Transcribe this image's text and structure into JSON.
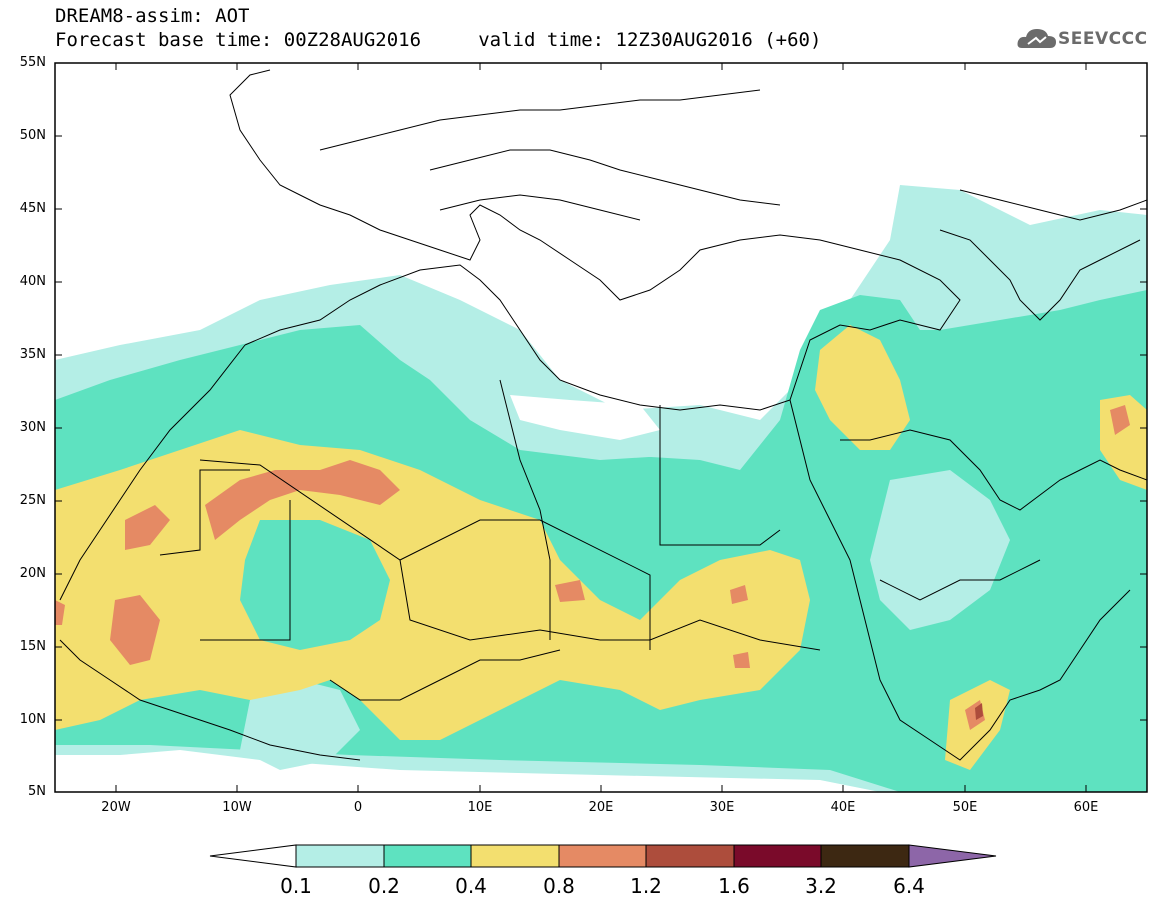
{
  "title": {
    "line1": "DREAM8-assim: AOT",
    "line2": "Forecast base time: 00Z28AUG2016     valid time: 12Z30AUG2016 (+60)"
  },
  "logo": {
    "text": "SEEVCCC",
    "icon": "cloud-icon"
  },
  "map": {
    "lat_labels": [
      "55N",
      "50N",
      "45N",
      "40N",
      "35N",
      "30N",
      "25N",
      "20N",
      "15N",
      "10N",
      "5N"
    ],
    "lon_labels": [
      "20W",
      "10W",
      "0",
      "10E",
      "20E",
      "30E",
      "40E",
      "50E",
      "60E"
    ]
  },
  "colorbar": {
    "colors": [
      "#ffffff",
      "#b4eee6",
      "#5ee2c0",
      "#f3df6f",
      "#e58a64",
      "#ad4d3c",
      "#7a0a2a",
      "#3d2812",
      "#8d66a8"
    ],
    "labels": [
      "0.1",
      "0.2",
      "0.4",
      "0.8",
      "1.2",
      "1.6",
      "3.2",
      "6.4"
    ]
  }
}
